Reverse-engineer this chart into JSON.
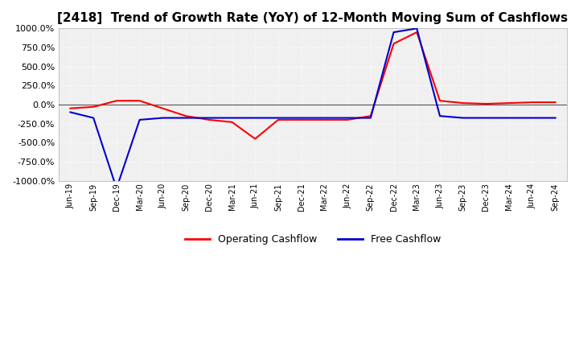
{
  "title": "[2418]  Trend of Growth Rate (YoY) of 12-Month Moving Sum of Cashflows",
  "title_fontsize": 11,
  "ylim": [
    -1000,
    1000
  ],
  "yticks": [
    -1000,
    -750,
    -500,
    -250,
    0,
    250,
    500,
    750,
    1000
  ],
  "legend_labels": [
    "Operating Cashflow",
    "Free Cashflow"
  ],
  "line_colors": [
    "#ff0000",
    "#0000cc"
  ],
  "background_color": "#f0f0f0",
  "dates": [
    "Jun-19",
    "Sep-19",
    "Dec-19",
    "Mar-20",
    "Jun-20",
    "Sep-20",
    "Dec-20",
    "Mar-21",
    "Jun-21",
    "Sep-21",
    "Dec-21",
    "Mar-22",
    "Jun-22",
    "Sep-22",
    "Dec-22",
    "Mar-23",
    "Jun-23",
    "Sep-23",
    "Dec-23",
    "Mar-24",
    "Jun-24",
    "Sep-24"
  ],
  "operating_cashflow": [
    -50,
    -30,
    50,
    50,
    -50,
    -150,
    -200,
    -230,
    -450,
    -200,
    -200,
    -200,
    -200,
    -150,
    800,
    950,
    50,
    20,
    10,
    20,
    30,
    30
  ],
  "free_cashflow": [
    -100,
    -175,
    -1100,
    -200,
    -175,
    -175,
    -175,
    -175,
    -175,
    -175,
    -175,
    -175,
    -175,
    -175,
    950,
    1000,
    -150,
    -175,
    -175,
    -175,
    -175,
    -175
  ],
  "grid_color": "#cccccc",
  "spine_color": "#aaaaaa",
  "zero_line_color": "#555555"
}
